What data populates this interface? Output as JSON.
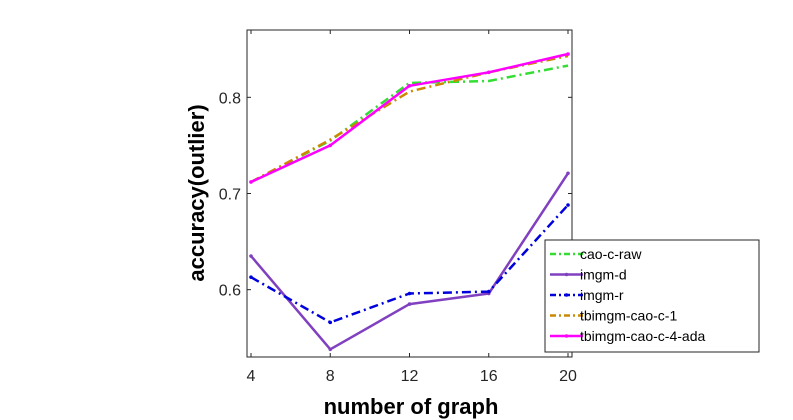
{
  "chart_data": {
    "type": "line",
    "title": "",
    "xlabel": "number of graph",
    "ylabel": "accuracy(outlier)",
    "x": [
      4,
      8,
      12,
      16,
      20
    ],
    "xticks": [
      "4",
      "8",
      "12",
      "16",
      "20"
    ],
    "yticks": [
      0.6,
      0.7,
      0.8
    ],
    "ytick_labels": [
      "0.6",
      "0.7",
      "0.8"
    ],
    "xlim": [
      4,
      20
    ],
    "ylim": [
      0.53,
      0.87
    ],
    "grid": false,
    "legend_position": "bottom-right",
    "series": [
      {
        "name": "cao-c-raw",
        "values": [
          0.712,
          0.755,
          0.815,
          0.817,
          0.833
        ],
        "color": "#33dd33",
        "dash": "dash-dot",
        "marker": "none"
      },
      {
        "name": "imgm-d",
        "values": [
          0.635,
          0.538,
          0.585,
          0.596,
          0.721
        ],
        "color": "#8040c0",
        "dash": "solid",
        "marker": "dot"
      },
      {
        "name": "imgm-r",
        "values": [
          0.613,
          0.566,
          0.596,
          0.598,
          0.688
        ],
        "color": "#0000dd",
        "dash": "dash-dot",
        "marker": "dot"
      },
      {
        "name": "tbimgm-cao-c-1",
        "values": [
          0.712,
          0.756,
          0.806,
          0.826,
          0.843
        ],
        "color": "#cc8800",
        "dash": "dash-dot",
        "marker": "none"
      },
      {
        "name": "tbimgm-cao-c-4-ada",
        "values": [
          0.712,
          0.75,
          0.812,
          0.826,
          0.845
        ],
        "color": "#ff00ff",
        "dash": "solid",
        "marker": "dot"
      }
    ]
  }
}
